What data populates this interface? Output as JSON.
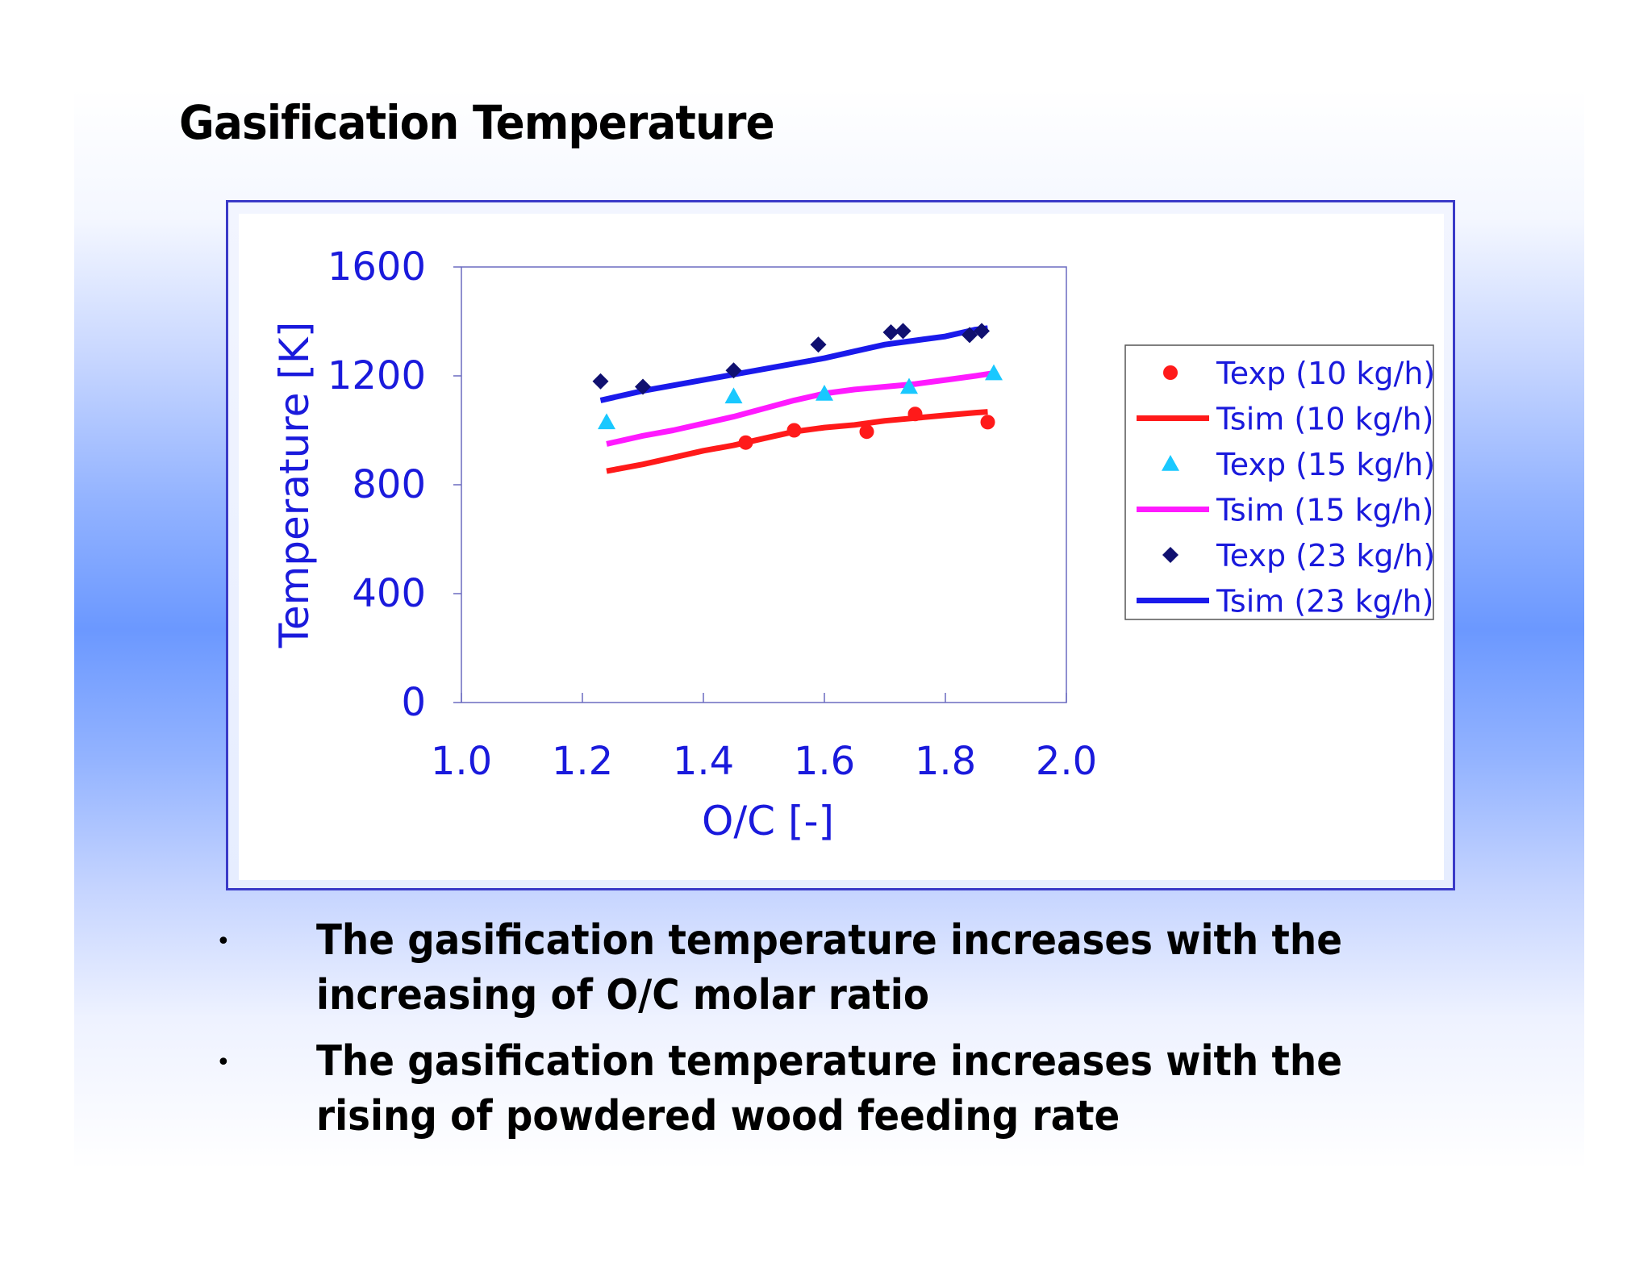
{
  "slide": {
    "title": "Gasification Temperature",
    "bullets": [
      "The gasification temperature increases with the increasing of O/C molar ratio",
      "The gasification temperature increases with the rising of powdered wood feeding rate"
    ],
    "bullet_symbol": "•"
  },
  "chart_data": {
    "type": "scatter",
    "xlabel": "O/C [-]",
    "ylabel": "Temperature [K]",
    "xlim": [
      1.0,
      2.0
    ],
    "ylim": [
      0,
      1600
    ],
    "xticks": [
      "1.0",
      "1.2",
      "1.4",
      "1.6",
      "1.8",
      "2.0"
    ],
    "yticks": [
      "0",
      "400",
      "800",
      "1200",
      "1600"
    ],
    "grid": false,
    "legend_position": "right",
    "colors": {
      "axis_text": "#1a1adc",
      "plot_border": "#6b6bc0",
      "legend_border": "#555555"
    },
    "series": [
      {
        "name": "Texp (10 kg/h)",
        "kind": "scatter",
        "marker": "circle",
        "color": "#ff1a1a",
        "points": [
          [
            1.47,
            955
          ],
          [
            1.55,
            1000
          ],
          [
            1.67,
            995
          ],
          [
            1.75,
            1060
          ],
          [
            1.87,
            1030
          ]
        ]
      },
      {
        "name": "Tsim (10 kg/h)",
        "kind": "line",
        "color": "#ff1a1a",
        "points": [
          [
            1.24,
            850
          ],
          [
            1.3,
            875
          ],
          [
            1.35,
            900
          ],
          [
            1.4,
            925
          ],
          [
            1.45,
            945
          ],
          [
            1.5,
            970
          ],
          [
            1.55,
            995
          ],
          [
            1.6,
            1010
          ],
          [
            1.65,
            1020
          ],
          [
            1.7,
            1035
          ],
          [
            1.75,
            1045
          ],
          [
            1.8,
            1055
          ],
          [
            1.85,
            1065
          ],
          [
            1.87,
            1068
          ]
        ]
      },
      {
        "name": "Texp (15 kg/h)",
        "kind": "scatter",
        "marker": "triangle",
        "color": "#19c8ff",
        "points": [
          [
            1.24,
            1030
          ],
          [
            1.45,
            1125
          ],
          [
            1.6,
            1135
          ],
          [
            1.74,
            1160
          ],
          [
            1.88,
            1210
          ]
        ]
      },
      {
        "name": "Tsim (15 kg/h)",
        "kind": "line",
        "color": "#ff1aff",
        "points": [
          [
            1.24,
            950
          ],
          [
            1.3,
            980
          ],
          [
            1.35,
            1000
          ],
          [
            1.4,
            1025
          ],
          [
            1.45,
            1050
          ],
          [
            1.5,
            1080
          ],
          [
            1.55,
            1110
          ],
          [
            1.6,
            1135
          ],
          [
            1.65,
            1150
          ],
          [
            1.7,
            1160
          ],
          [
            1.75,
            1170
          ],
          [
            1.8,
            1185
          ],
          [
            1.85,
            1200
          ],
          [
            1.88,
            1210
          ]
        ]
      },
      {
        "name": "Texp (23 kg/h)",
        "kind": "scatter",
        "marker": "diamond",
        "color": "#101070",
        "points": [
          [
            1.23,
            1180
          ],
          [
            1.3,
            1160
          ],
          [
            1.45,
            1220
          ],
          [
            1.59,
            1315
          ],
          [
            1.71,
            1360
          ],
          [
            1.73,
            1365
          ],
          [
            1.84,
            1350
          ],
          [
            1.86,
            1365
          ]
        ]
      },
      {
        "name": "Tsim (23 kg/h)",
        "kind": "line",
        "color": "#1a1aeb",
        "points": [
          [
            1.23,
            1110
          ],
          [
            1.3,
            1145
          ],
          [
            1.35,
            1165
          ],
          [
            1.4,
            1185
          ],
          [
            1.45,
            1205
          ],
          [
            1.5,
            1225
          ],
          [
            1.55,
            1245
          ],
          [
            1.6,
            1265
          ],
          [
            1.65,
            1290
          ],
          [
            1.7,
            1315
          ],
          [
            1.75,
            1330
          ],
          [
            1.8,
            1345
          ],
          [
            1.85,
            1370
          ],
          [
            1.87,
            1375
          ]
        ]
      }
    ]
  }
}
